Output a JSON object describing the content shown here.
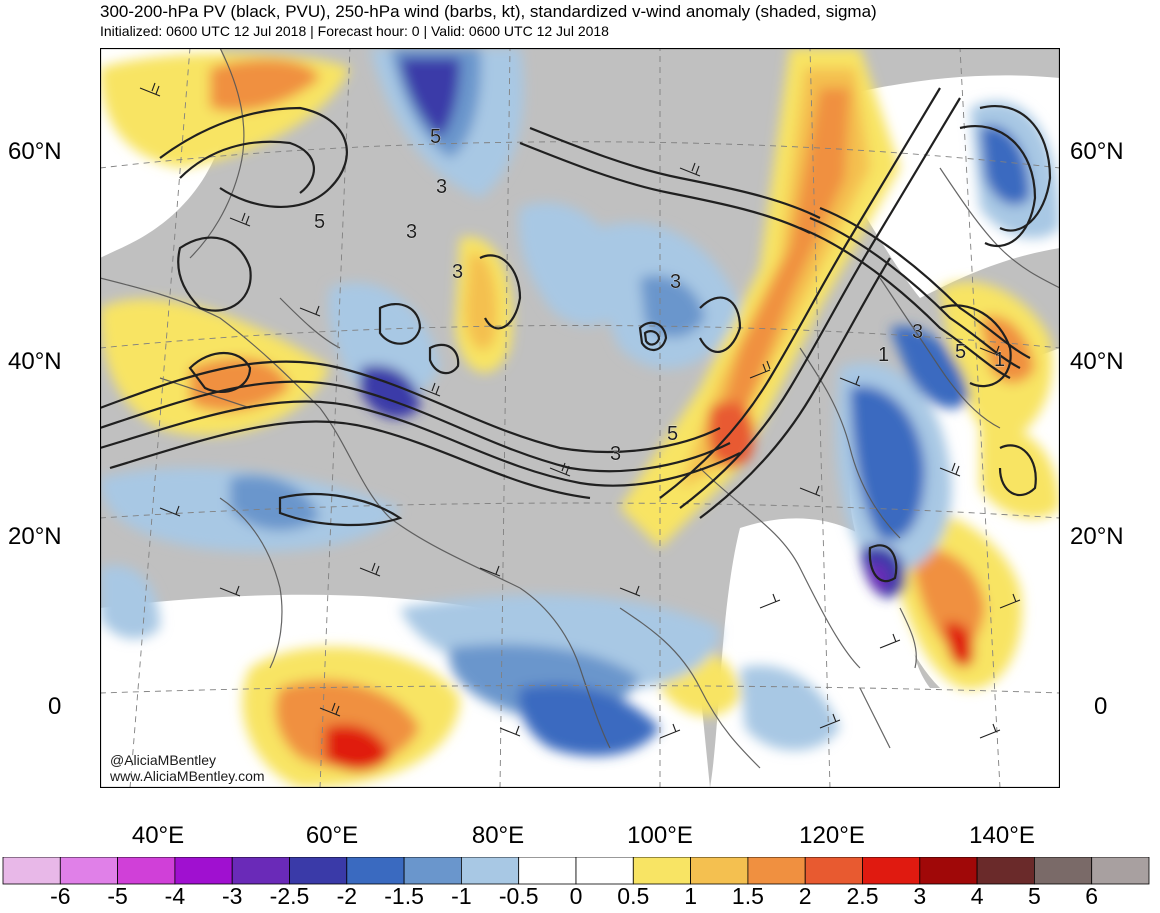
{
  "header": {
    "title": "300-200-hPa PV (black, PVU), 250-hPa wind (barbs, kt), standardized v-wind anomaly (shaded, sigma)",
    "subtitle": "Initialized: 0600 UTC 12 Jul 2018 | Forecast hour: 0 | Valid: 0600 UTC 12 Jul 2018"
  },
  "axes": {
    "lat_left": [
      "60°N",
      "40°N",
      "20°N",
      "0"
    ],
    "lat_right": [
      "60°N",
      "40°N",
      "20°N",
      "0"
    ],
    "lon": [
      "40°E",
      "60°E",
      "80°E",
      "100°E",
      "120°E",
      "140°E"
    ]
  },
  "contour_labels": [
    "5",
    "3",
    "5",
    "3",
    "3",
    "3",
    "5",
    "3",
    "1",
    "3",
    "5",
    "1"
  ],
  "credits": {
    "handle": "@AliciaMBentley",
    "site": "www.AliciaMBentley.com"
  },
  "colorbar": {
    "labels": [
      "-6",
      "-5",
      "-4",
      "-3",
      "-2.5",
      "-2",
      "-1.5",
      "-1",
      "-0.5",
      "0",
      "0.5",
      "1",
      "1.5",
      "2",
      "2.5",
      "3",
      "4",
      "5",
      "6"
    ],
    "colors": [
      "#e8b8e8",
      "#e080e8",
      "#d040d8",
      "#a010d0",
      "#6a2ab8",
      "#3a3aa8",
      "#3a6ac0",
      "#6a96cc",
      "#a8c8e4",
      "#ffffff",
      "#ffffff",
      "#f8e464",
      "#f4c050",
      "#f09040",
      "#e85a30",
      "#e01a10",
      "#a00808",
      "#6a2a2a",
      "#7a6a68",
      "#a8a0a0"
    ]
  },
  "map": {
    "colors": {
      "land": "#c0c0c0",
      "ocean": "#ffffff",
      "contour": "#202020",
      "coast": "#555555",
      "grid": "#808080"
    }
  }
}
